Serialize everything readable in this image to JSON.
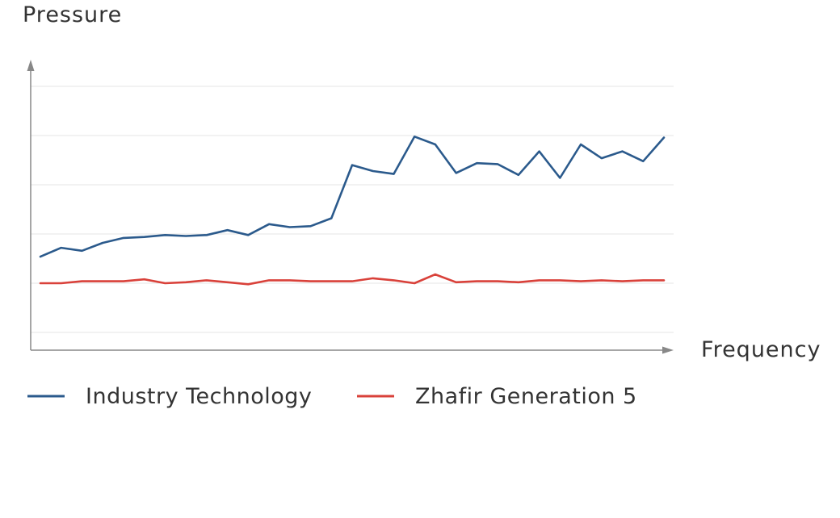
{
  "chart_data": {
    "type": "line",
    "title": "",
    "ylabel": "Pressure",
    "xlabel": "Frequency",
    "x": [
      1,
      2,
      3,
      4,
      5,
      6,
      7,
      8,
      9,
      10,
      11,
      12,
      13,
      14,
      15,
      16,
      17,
      18,
      19,
      20,
      21,
      22,
      23,
      24,
      25,
      26,
      27,
      28,
      29,
      30,
      31
    ],
    "ylim": [
      0,
      6
    ],
    "yticks": [
      0.36,
      1.36,
      2.36,
      3.36,
      4.36,
      5.36
    ],
    "grid": true,
    "legend_position": "bottom",
    "series": [
      {
        "name": "Industry Technology",
        "color": "#2b5a8c",
        "values": [
          1.9,
          2.08,
          2.02,
          2.18,
          2.28,
          2.3,
          2.34,
          2.32,
          2.34,
          2.44,
          2.34,
          2.56,
          2.5,
          2.52,
          2.68,
          3.76,
          3.64,
          3.58,
          4.34,
          4.18,
          3.6,
          3.8,
          3.78,
          3.56,
          4.04,
          3.5,
          4.18,
          3.9,
          4.04,
          3.84,
          4.32
        ]
      },
      {
        "name": "Zhafir Generation 5",
        "color": "#d9413a",
        "values": [
          1.36,
          1.36,
          1.4,
          1.4,
          1.4,
          1.44,
          1.36,
          1.38,
          1.42,
          1.38,
          1.34,
          1.42,
          1.42,
          1.4,
          1.4,
          1.4,
          1.46,
          1.42,
          1.36,
          1.54,
          1.38,
          1.4,
          1.4,
          1.38,
          1.42,
          1.42,
          1.4,
          1.42,
          1.4,
          1.42,
          1.42
        ]
      }
    ]
  }
}
